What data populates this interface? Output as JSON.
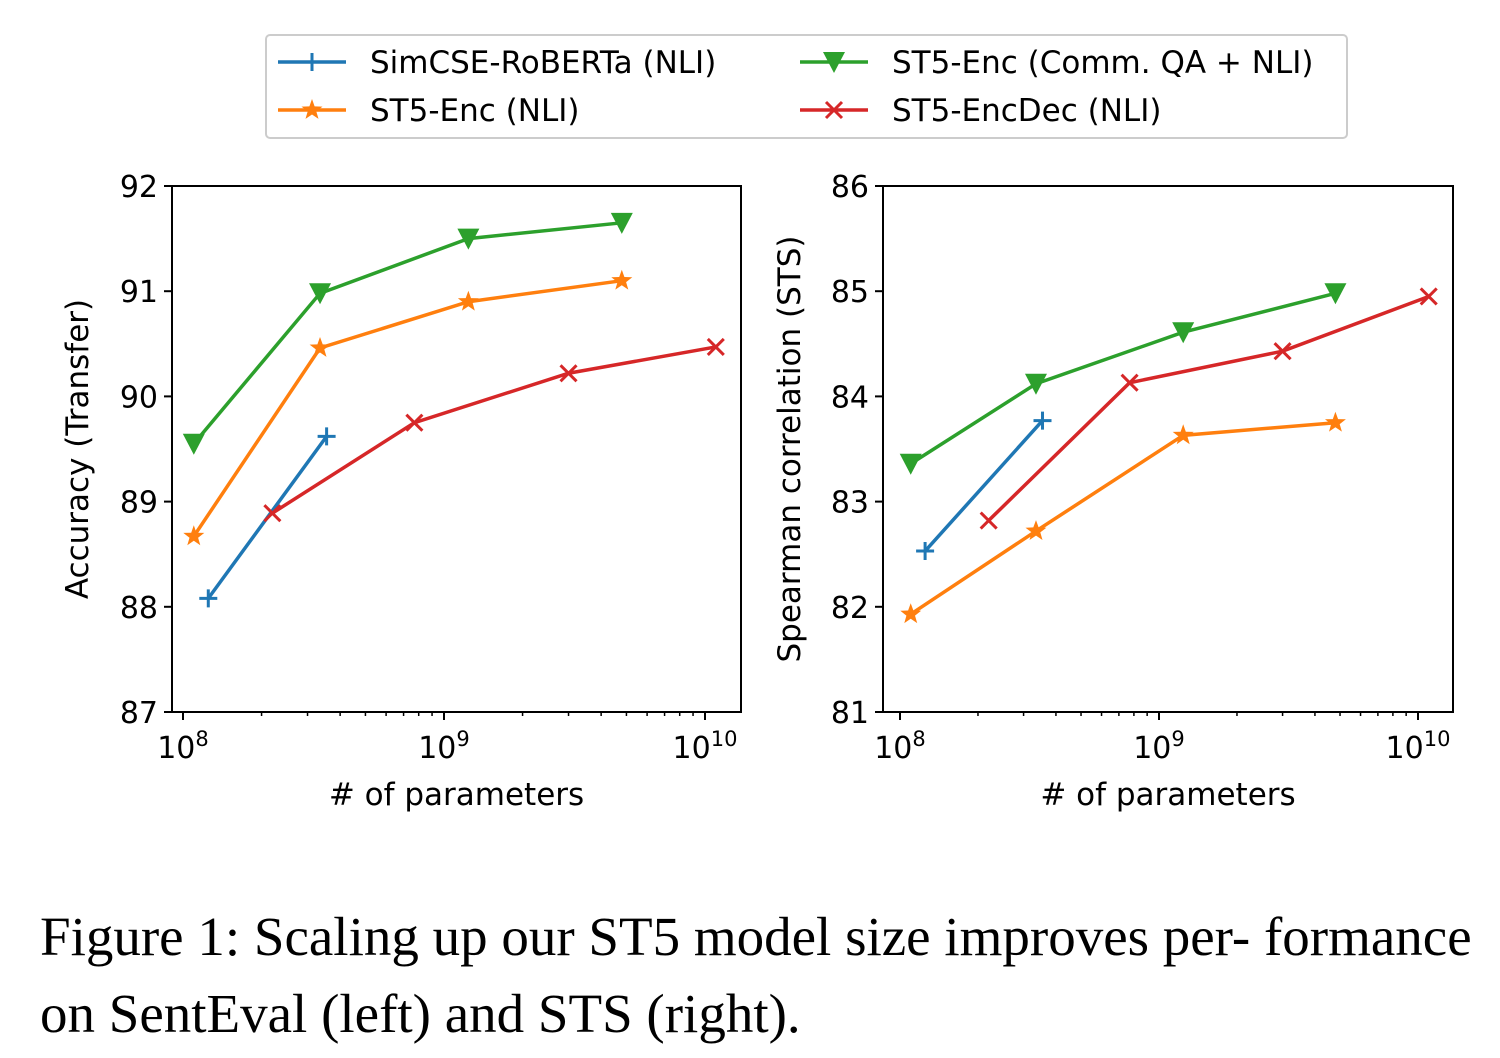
{
  "caption": "Figure 1: Scaling up our ST5 model size improves per- formance on SentEval (left) and STS (right).",
  "legend": [
    {
      "name": "SimCSE-RoBERTa (NLI)",
      "color": "#1f77b4",
      "marker": "plus"
    },
    {
      "name": "ST5-Enc (NLI)",
      "color": "#ff7f0e",
      "marker": "star"
    },
    {
      "name": "ST5-Enc (Comm. QA + NLI)",
      "color": "#2ca02c",
      "marker": "triangle-down"
    },
    {
      "name": "ST5-EncDec (NLI)",
      "color": "#d62728",
      "marker": "x"
    }
  ],
  "chart_data": [
    {
      "type": "line",
      "xlabel": "# of parameters",
      "ylabel": "Accuracy (Transfer)",
      "xscale": "log",
      "xlim": [
        85000000.0,
        13500000000.0
      ],
      "ylim": [
        87,
        92
      ],
      "xticks": [
        "10^8",
        "10^9",
        "10^10"
      ],
      "yticks": [
        87,
        88,
        89,
        90,
        91,
        92
      ],
      "grid": false,
      "series": [
        {
          "name": "SimCSE-RoBERTa (NLI)",
          "x": [
            125000000.0,
            355000000.0
          ],
          "y": [
            88.08,
            89.62
          ]
        },
        {
          "name": "ST5-Enc (NLI)",
          "x": [
            110000000.0,
            335000000.0,
            1240000000.0,
            4800000000.0
          ],
          "y": [
            88.67,
            90.46,
            90.9,
            91.1
          ]
        },
        {
          "name": "ST5-Enc (Comm. QA + NLI)",
          "x": [
            110000000.0,
            335000000.0,
            1240000000.0,
            4800000000.0
          ],
          "y": [
            89.55,
            90.98,
            91.5,
            91.65
          ]
        },
        {
          "name": "ST5-EncDec (NLI)",
          "x": [
            220000000.0,
            770000000.0,
            3000000000.0,
            11000000000.0
          ],
          "y": [
            88.89,
            89.75,
            90.22,
            90.47
          ]
        }
      ]
    },
    {
      "type": "line",
      "xlabel": "# of parameters",
      "ylabel": "Spearman correlation (STS)",
      "xscale": "log",
      "xlim": [
        85000000.0,
        13500000000.0
      ],
      "ylim": [
        81,
        86
      ],
      "xticks": [
        "10^8",
        "10^9",
        "10^10"
      ],
      "yticks": [
        81,
        82,
        83,
        84,
        85,
        86
      ],
      "grid": false,
      "series": [
        {
          "name": "SimCSE-RoBERTa (NLI)",
          "x": [
            125000000.0,
            355000000.0
          ],
          "y": [
            82.53,
            83.77
          ]
        },
        {
          "name": "ST5-Enc (NLI)",
          "x": [
            110000000.0,
            335000000.0,
            1240000000.0,
            4800000000.0
          ],
          "y": [
            81.93,
            82.72,
            83.63,
            83.75
          ]
        },
        {
          "name": "ST5-Enc (Comm. QA + NLI)",
          "x": [
            110000000.0,
            335000000.0,
            1240000000.0,
            4800000000.0
          ],
          "y": [
            83.36,
            84.12,
            84.61,
            84.98
          ]
        },
        {
          "name": "ST5-EncDec (NLI)",
          "x": [
            220000000.0,
            770000000.0,
            3000000000.0,
            11000000000.0
          ],
          "y": [
            82.82,
            84.13,
            84.43,
            84.95
          ]
        }
      ]
    }
  ]
}
